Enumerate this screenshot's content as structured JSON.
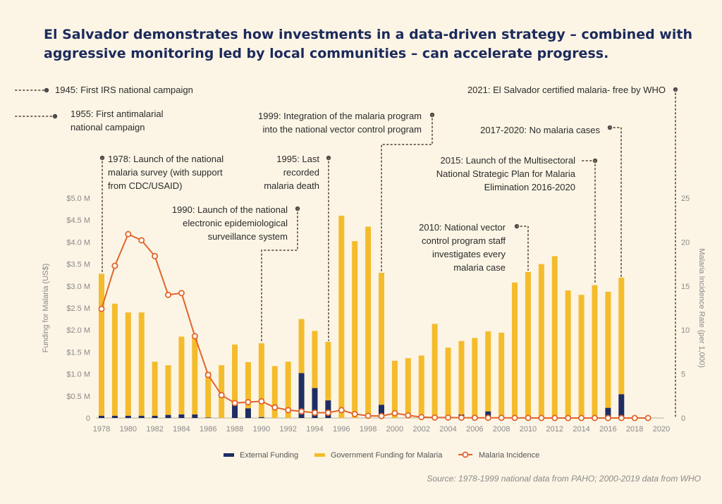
{
  "title_line1": "El Salvador demonstrates how investments in a data-driven strategy – combined with",
  "title_line2": "aggressive monitoring led by local communities – can accelerate progress.",
  "source": "Source: 1978-1999 national data from PAHO; 2000-2019 data from WHO",
  "colors": {
    "external": "#1f2d63",
    "government": "#f4bc2c",
    "incidence": "#e0652a",
    "annotation_dots": "#7a6a5a"
  },
  "annotations": {
    "a1945": "1945: First IRS national campaign",
    "a1955": [
      "1955: First antimalarial",
      "national campaign"
    ],
    "a1978": [
      "1978: Launch of the national",
      "malaria survey (with support",
      "from CDC/USAID)"
    ],
    "a1990": [
      "1990: Launch of the national",
      "electronic epidemiological",
      "surveillance system"
    ],
    "a1995": [
      "1995: Last",
      "recorded",
      "malaria death"
    ],
    "a1999": [
      "1999: Integration of the malaria program",
      "into the national vector control program"
    ],
    "a2010": [
      "2010: National vector",
      "control program staff",
      "investigates every",
      "malaria case"
    ],
    "a2015": [
      "2015: Launch of the Multisectoral",
      "National Strategic Plan for Malaria",
      "Elimination 2016-2020"
    ],
    "a2017": "2017-2020: No malaria cases",
    "a2021": "2021: El Salvador certified malaria- free by WHO"
  },
  "chart_data": {
    "type": "bar",
    "stacked": true,
    "title": "",
    "ylabel": "Funding for Malaria (US$)",
    "y2label": "Malaria Incidence Rate (per 1,000)",
    "ylim": [
      0,
      5.0
    ],
    "y2lim": [
      0,
      25
    ],
    "yticks": [
      "0",
      "$0.5 M",
      "$1.0 M",
      "$1.5 M",
      "$2.0 M",
      "$2.5 M",
      "$3.0 M",
      "$3.5 M",
      "$4.0 M",
      "$4.5 M",
      "$5.0 M"
    ],
    "y2ticks": [
      "0",
      "5",
      "10",
      "15",
      "20",
      "25"
    ],
    "xticks": [
      "1978",
      "1980",
      "1982",
      "1984",
      "1986",
      "1988",
      "1990",
      "1992",
      "1994",
      "1996",
      "1998",
      "2000",
      "2002",
      "2004",
      "2006",
      "2008",
      "2010",
      "2012",
      "2014",
      "2016",
      "2018",
      "2020"
    ],
    "years": [
      1978,
      1979,
      1980,
      1981,
      1982,
      1983,
      1984,
      1985,
      1986,
      1987,
      1988,
      1989,
      1990,
      1991,
      1992,
      1993,
      1994,
      1995,
      1996,
      1997,
      1998,
      1999,
      2000,
      2001,
      2002,
      2003,
      2004,
      2005,
      2006,
      2007,
      2008,
      2009,
      2010,
      2011,
      2012,
      2013,
      2014,
      2015,
      2016,
      2017,
      2018,
      2019
    ],
    "series": [
      {
        "name": "External Funding",
        "values": [
          0.05,
          0.05,
          0.05,
          0.05,
          0.05,
          0.07,
          0.08,
          0.08,
          0.01,
          0.0,
          0.32,
          0.22,
          0.02,
          0.0,
          0.0,
          1.02,
          0.68,
          0.4,
          0.0,
          0.0,
          0.0,
          0.3,
          0.0,
          0.0,
          0.0,
          0.02,
          0.02,
          0.08,
          0.05,
          0.15,
          0.02,
          0.0,
          0.0,
          0.0,
          0.0,
          0.0,
          0.0,
          0.0,
          0.23,
          0.54,
          0.0,
          0.0
        ]
      },
      {
        "name": "Government Funding for Malaria",
        "values": [
          3.23,
          2.55,
          2.35,
          2.35,
          1.23,
          1.13,
          1.77,
          1.82,
          1.04,
          1.2,
          1.35,
          1.05,
          1.68,
          1.18,
          1.28,
          1.23,
          1.3,
          1.33,
          4.6,
          4.02,
          4.35,
          3.0,
          1.3,
          1.36,
          1.42,
          2.12,
          1.58,
          1.67,
          1.77,
          1.82,
          1.92,
          3.08,
          3.32,
          3.5,
          3.68,
          2.9,
          2.8,
          3.02,
          2.64,
          2.65,
          0.0,
          0.0
        ]
      },
      {
        "name": "Malaria Incidence",
        "axis": "right",
        "values": [
          12.4,
          17.3,
          20.9,
          20.2,
          18.4,
          14.0,
          14.2,
          9.3,
          4.9,
          2.6,
          1.7,
          1.8,
          1.9,
          1.2,
          0.9,
          0.75,
          0.6,
          0.6,
          0.9,
          0.45,
          0.25,
          0.22,
          0.55,
          0.3,
          0.1,
          0.05,
          0.05,
          0.03,
          0.02,
          0.02,
          0.02,
          0.01,
          0.01,
          0.0,
          0.0,
          0.0,
          0.0,
          0.0,
          0.0,
          0.0,
          0.0,
          0.0
        ]
      }
    ],
    "legend": [
      "External Funding",
      "Government Funding for Malaria",
      "Malaria Incidence"
    ],
    "legend_position": "bottom"
  }
}
